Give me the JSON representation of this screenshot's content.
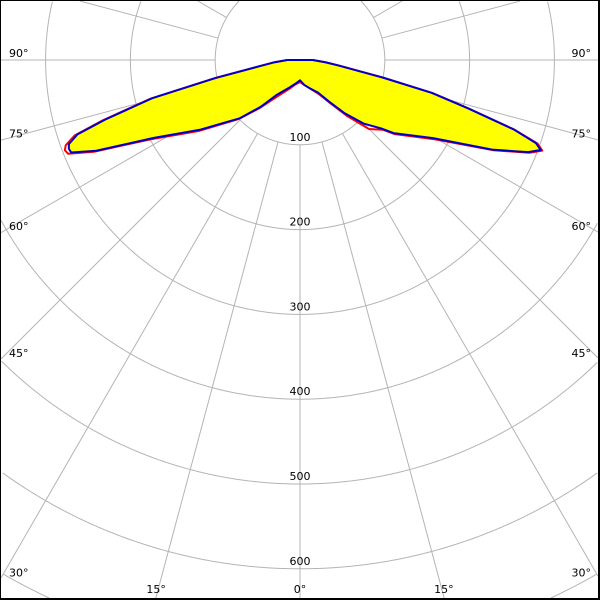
{
  "chart_data": {
    "type": "polar",
    "title": "",
    "radial_ticks": [
      "100",
      "200",
      "300",
      "400",
      "500",
      "600"
    ],
    "radial_tick_values": [
      100,
      200,
      300,
      400,
      500,
      600,
      700
    ],
    "radial_max": 700,
    "angle_grid_step_deg": 15,
    "grid": true,
    "side_angle_labels": [
      "90°",
      "75°",
      "60°",
      "45°",
      "30°"
    ],
    "side_angle_values": [
      90,
      75,
      60,
      45,
      30
    ],
    "bottom_angle_labels": [
      "15°",
      "0°",
      "15°"
    ],
    "bottom_angle_values": [
      -15,
      0,
      15
    ],
    "fill_color": "#ffff00",
    "grid_color": "#b4b4b4",
    "series": [
      {
        "color": "#ff0000",
        "angles": [
          -90,
          -85,
          -82,
          -78,
          -75.5,
          -73,
          -71.5,
          -70,
          -69,
          -68,
          -66,
          -62,
          -55,
          -46,
          -40,
          -34,
          -20,
          -10,
          0,
          10,
          20,
          29,
          35,
          40,
          45,
          50,
          52,
          59.6,
          65,
          68,
          69.5,
          70.6,
          72,
          74,
          76,
          78,
          82,
          85,
          90
        ],
        "values": [
          15,
          30,
          44,
          102,
          182,
          243,
          280,
          294,
          297,
          295,
          266,
          199,
          146,
          100,
          74,
          55,
          36,
          29,
          26,
          30,
          36,
          46,
          62,
          86,
          115,
          128,
          142,
          185,
          252,
          292,
          305,
          297,
          266,
          206,
          161,
          101,
          46,
          30,
          15
        ]
      },
      {
        "color": "#0000cc",
        "angles": [
          -90,
          -85,
          -82,
          -78,
          -75.5,
          -73,
          -71.5,
          -70,
          -69,
          -68,
          -66,
          -62,
          -55,
          -46,
          -40,
          -34,
          -20,
          -10,
          0,
          10,
          20,
          29,
          35,
          40,
          45,
          50,
          52,
          59.6,
          65,
          68,
          69.5,
          70.6,
          72,
          74,
          76,
          78,
          82,
          85,
          90
        ],
        "values": [
          15,
          30,
          43,
          101,
          180,
          240,
          277,
          290,
          292,
          291,
          263,
          196,
          143,
          99,
          72,
          50,
          34,
          28,
          24,
          30,
          36,
          44,
          60,
          82,
          106,
          126,
          140,
          182,
          250,
          290,
          303,
          295,
          265,
          205,
          160,
          100,
          45,
          30,
          15
        ]
      }
    ]
  }
}
